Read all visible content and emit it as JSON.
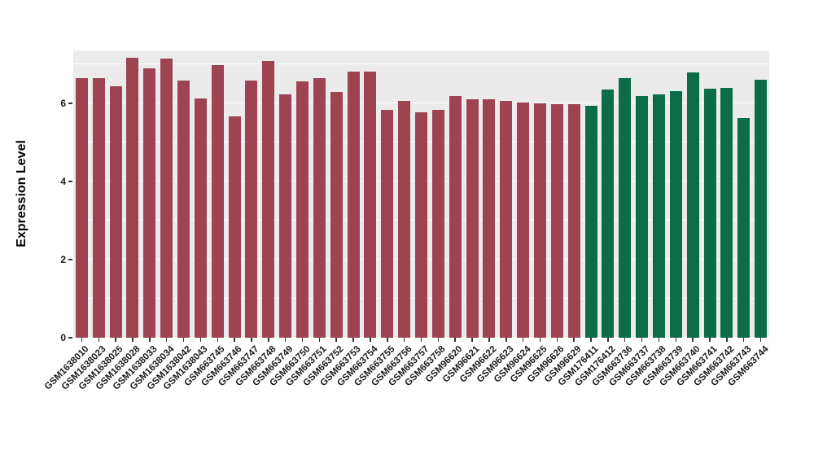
{
  "chart_data": {
    "type": "bar",
    "title": "",
    "xlabel": "",
    "ylabel": "Expression Level",
    "ylim": [
      0,
      7.35
    ],
    "yticks": [
      0,
      2,
      4,
      6
    ],
    "yticks_minor": [
      1,
      3,
      5,
      7
    ],
    "grid": true,
    "legend": false,
    "panel_background": "#ebebeb",
    "group_colors": {
      "g1": "#9d4352",
      "g2": "#0b6d47"
    },
    "categories": [
      "GSM1638010",
      "GSM1638023",
      "GSM1638025",
      "GSM1638028",
      "GSM1638033",
      "GSM1638034",
      "GSM1638042",
      "GSM1638043",
      "GSM663745",
      "GSM663746",
      "GSM663747",
      "GSM663748",
      "GSM663749",
      "GSM663750",
      "GSM663751",
      "GSM663752",
      "GSM663753",
      "GSM663754",
      "GSM663755",
      "GSM663756",
      "GSM663757",
      "GSM663758",
      "GSM96620",
      "GSM96621",
      "GSM96622",
      "GSM96623",
      "GSM96624",
      "GSM96625",
      "GSM96626",
      "GSM96629",
      "GSM176411",
      "GSM176412",
      "GSM663736",
      "GSM663737",
      "GSM663738",
      "GSM663739",
      "GSM663740",
      "GSM663741",
      "GSM663742",
      "GSM663743",
      "GSM663744"
    ],
    "values": [
      6.65,
      6.65,
      6.44,
      7.17,
      6.9,
      7.15,
      6.58,
      6.13,
      6.98,
      5.67,
      6.58,
      7.08,
      6.23,
      6.56,
      6.65,
      6.29,
      6.81,
      6.81,
      5.83,
      6.06,
      5.77,
      5.83,
      6.19,
      6.1,
      6.1,
      6.06,
      6.02,
      6.0,
      5.98,
      5.98,
      5.94,
      6.35,
      6.65,
      6.19,
      6.23,
      6.31,
      6.79,
      6.38,
      6.4,
      5.63,
      6.6
    ],
    "groups": [
      "g1",
      "g1",
      "g1",
      "g1",
      "g1",
      "g1",
      "g1",
      "g1",
      "g1",
      "g1",
      "g1",
      "g1",
      "g1",
      "g1",
      "g1",
      "g1",
      "g1",
      "g1",
      "g1",
      "g1",
      "g1",
      "g1",
      "g1",
      "g1",
      "g1",
      "g1",
      "g1",
      "g1",
      "g1",
      "g1",
      "g2",
      "g2",
      "g2",
      "g2",
      "g2",
      "g2",
      "g2",
      "g2",
      "g2",
      "g2",
      "g2"
    ]
  }
}
